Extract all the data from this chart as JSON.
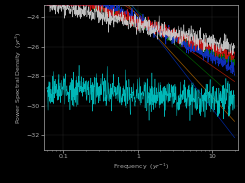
{
  "background_color": "#000000",
  "axes_color": "#000000",
  "tick_color": "#aaaaaa",
  "label_color": "#aaaaaa",
  "grid_color": "#444444",
  "xlabel": "Frequency  ($yr^{-1}$)",
  "ylabel": "Power Spectral Density  ($yr^{3}$)",
  "xlim": [
    0.055,
    22
  ],
  "ylim": [
    -33.0,
    -23.2
  ],
  "yticks": [
    -32,
    -30,
    -28,
    -26,
    -24
  ],
  "label_fontsize": 4.5,
  "tick_fontsize": 4.5,
  "seed": 42,
  "n_points": 800,
  "freq_min": 0.06,
  "freq_max": 20,
  "line_alpha": 0.95,
  "ref_line_data": [
    {
      "color": "#dd2200",
      "intercept": -23.8,
      "slope": -3.5
    },
    {
      "color": "#007700",
      "intercept": -23.6,
      "slope": -4.5
    },
    {
      "color": "#cc7700",
      "intercept": -23.9,
      "slope": -5.5
    },
    {
      "color": "#0033cc",
      "intercept": -23.7,
      "slope": -6.5
    }
  ],
  "psd_lines": [
    {
      "color": "#cccccc",
      "intercept": -24.5,
      "slope": -1.2,
      "noise": 0.3,
      "seed_off": 0,
      "lw": 0.35,
      "alpha": 0.95,
      "zorder": 8
    },
    {
      "color": "#cc1111",
      "intercept": -24.3,
      "slope": -1.8,
      "noise": 0.2,
      "seed_off": 1,
      "lw": 0.5,
      "alpha": 0.95,
      "zorder": 7
    },
    {
      "color": "#1133cc",
      "intercept": -24.2,
      "slope": -2.5,
      "noise": 0.22,
      "seed_off": 2,
      "lw": 0.5,
      "alpha": 0.9,
      "zorder": 6
    },
    {
      "color": "#00cccc",
      "intercept": -29.2,
      "slope": -0.3,
      "noise": 0.55,
      "seed_off": 3,
      "lw": 0.35,
      "alpha": 0.9,
      "zorder": 5
    },
    {
      "color": "#007700",
      "intercept": -24.4,
      "slope": -2.0,
      "noise": 0.15,
      "seed_off": 4,
      "lw": 0.4,
      "alpha": 0.85,
      "zorder": 4
    }
  ]
}
